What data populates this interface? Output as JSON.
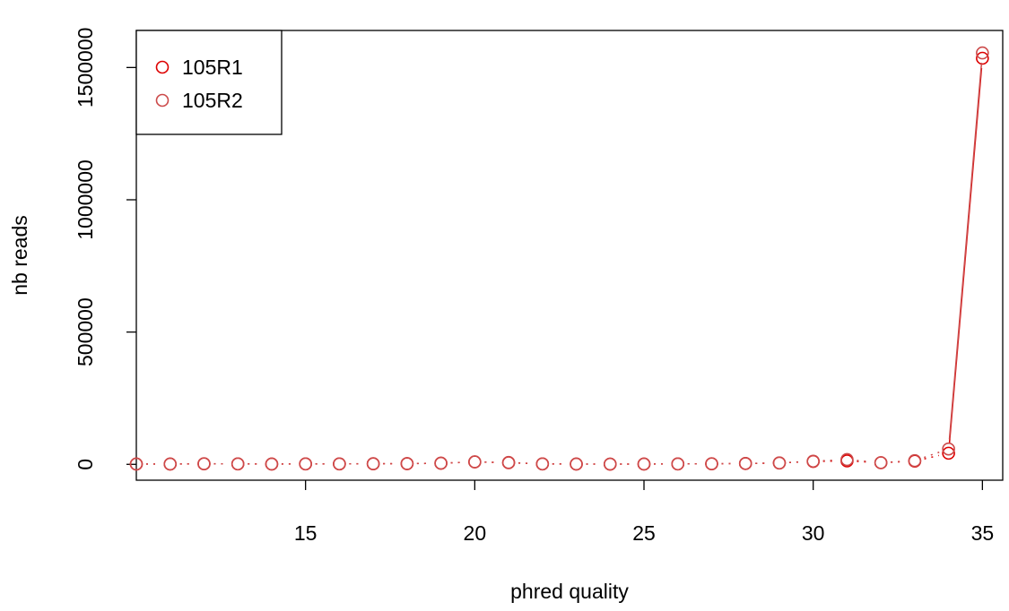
{
  "chart_data": {
    "type": "line",
    "title": "",
    "xlabel": "phred quality",
    "ylabel": "nb reads",
    "xlim": [
      10,
      35.6
    ],
    "ylim": [
      -60000,
      1640000
    ],
    "x_ticks": [
      15,
      20,
      25,
      30,
      35
    ],
    "y_ticks": [
      0,
      500000,
      1000000,
      1500000
    ],
    "grid": false,
    "legend_position": "top-left",
    "series": [
      {
        "name": "105R1",
        "color": "#DD0000",
        "x": [
          10,
          11,
          12,
          13,
          14,
          15,
          16,
          17,
          18,
          19,
          20,
          21,
          22,
          23,
          24,
          25,
          26,
          27,
          28,
          29,
          30,
          31,
          32,
          33,
          34,
          35
        ],
        "y": [
          1000,
          1000,
          2000,
          1500,
          1000,
          1500,
          1500,
          2000,
          2500,
          4000,
          9000,
          6000,
          1500,
          1000,
          800,
          1000,
          1500,
          2000,
          3000,
          5000,
          11000,
          13000,
          6000,
          12000,
          42000,
          1535000
        ]
      },
      {
        "name": "105R2",
        "color": "#CC4A4A",
        "x": [
          10,
          11,
          12,
          13,
          14,
          15,
          16,
          17,
          18,
          19,
          20,
          21,
          22,
          23,
          24,
          25,
          26,
          27,
          28,
          29,
          30,
          31,
          32,
          33,
          34,
          35
        ],
        "y": [
          1200,
          1200,
          2200,
          1800,
          1200,
          1800,
          1800,
          2300,
          2800,
          4500,
          9500,
          7000,
          1700,
          1100,
          900,
          1100,
          1600,
          2200,
          3400,
          5500,
          12000,
          18000,
          6500,
          14000,
          58000,
          1555000
        ]
      }
    ]
  }
}
